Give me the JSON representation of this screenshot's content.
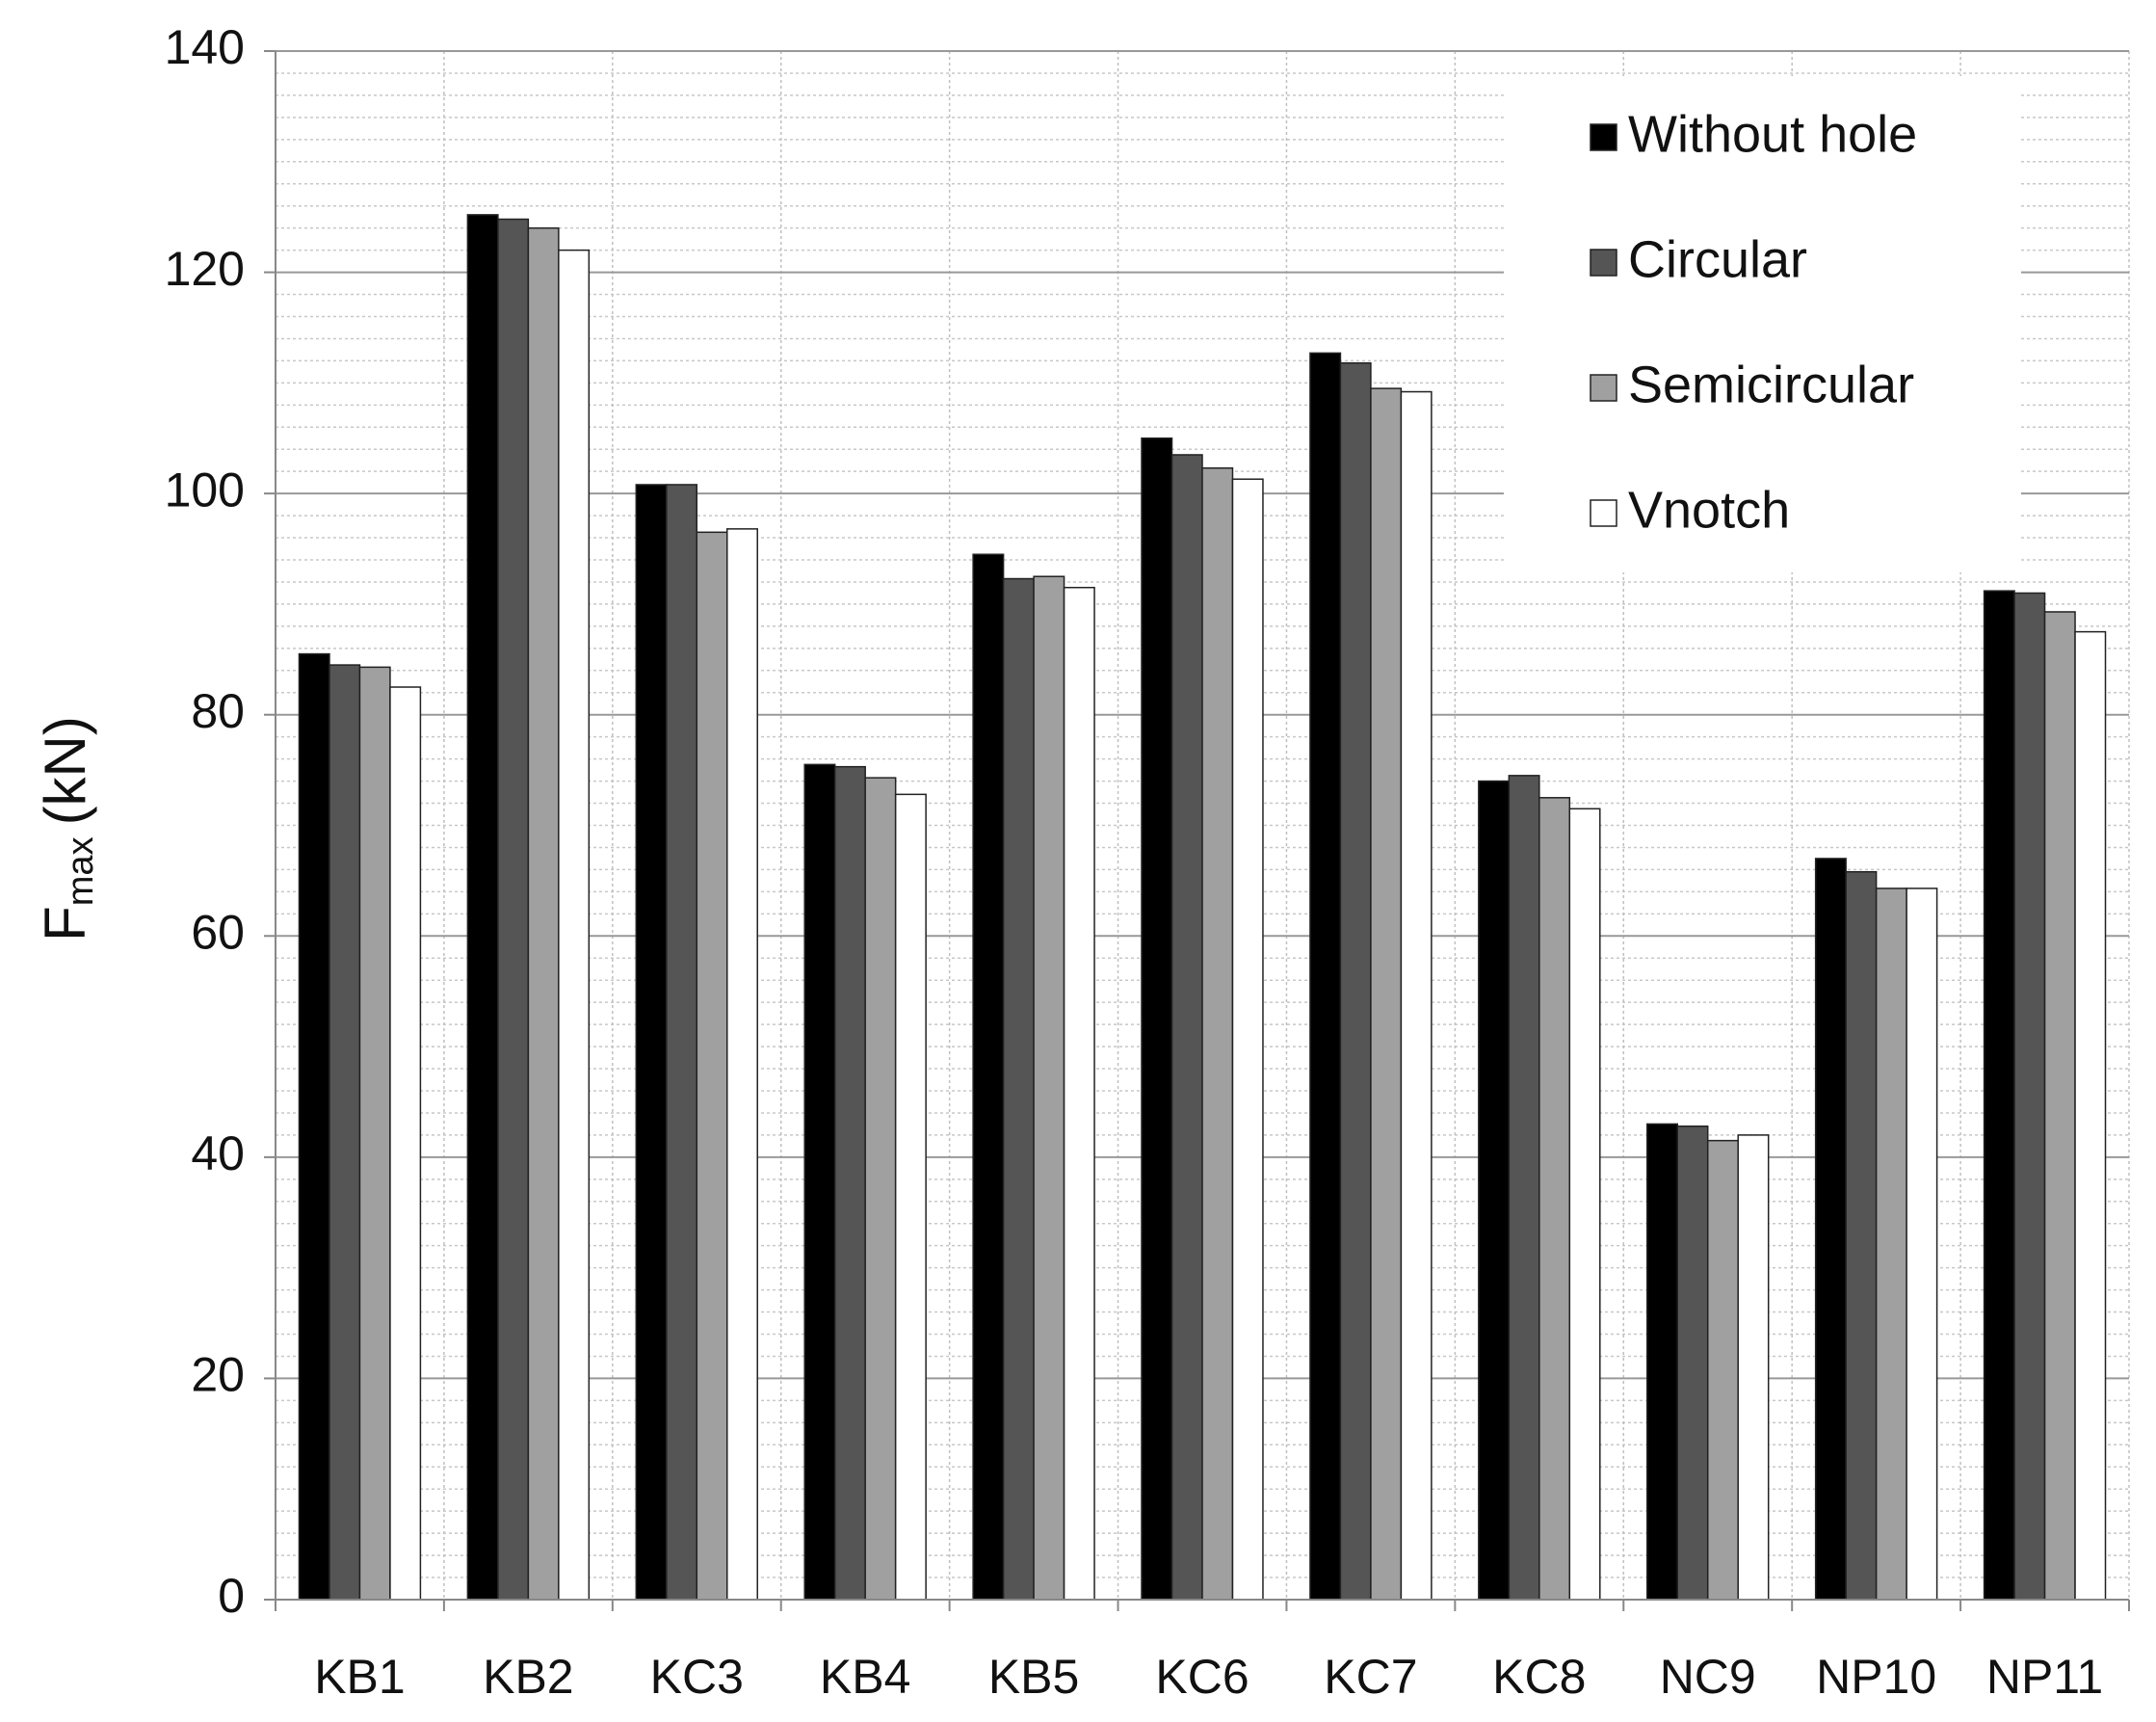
{
  "chart_data": {
    "type": "bar",
    "y_label": {
      "symbol": "F",
      "subscript": "max",
      "unit": "(kN)"
    },
    "categories": [
      "KB1",
      "KB2",
      "KC3",
      "KB4",
      "KB5",
      "KC6",
      "KC7",
      "KC8",
      "NC9",
      "NP10",
      "NP11"
    ],
    "series": [
      {
        "name": "Without hole",
        "color": "#000000",
        "values": [
          85.5,
          125.2,
          100.8,
          75.5,
          94.5,
          105,
          112.7,
          74,
          43,
          67,
          91.2
        ]
      },
      {
        "name": "Circular",
        "color": "#555555",
        "values": [
          84.5,
          124.8,
          100.8,
          75.3,
          92.3,
          103.5,
          111.8,
          74.5,
          42.8,
          65.8,
          91
        ]
      },
      {
        "name": "Semicircular",
        "color": "#a0a0a0",
        "values": [
          84.3,
          124,
          96.5,
          74.3,
          92.5,
          102.3,
          109.5,
          72.5,
          41.5,
          64.3,
          89.3
        ]
      },
      {
        "name": "Vnotch",
        "color": "#ffffff",
        "values": [
          82.5,
          122,
          96.8,
          72.8,
          91.5,
          101.3,
          109.2,
          71.5,
          42,
          64.3,
          87.5
        ]
      }
    ],
    "ylim": [
      0,
      140
    ],
    "yticks": [
      0,
      20,
      40,
      60,
      80,
      100,
      120,
      140
    ],
    "grid": true,
    "legend": "upper-right"
  }
}
